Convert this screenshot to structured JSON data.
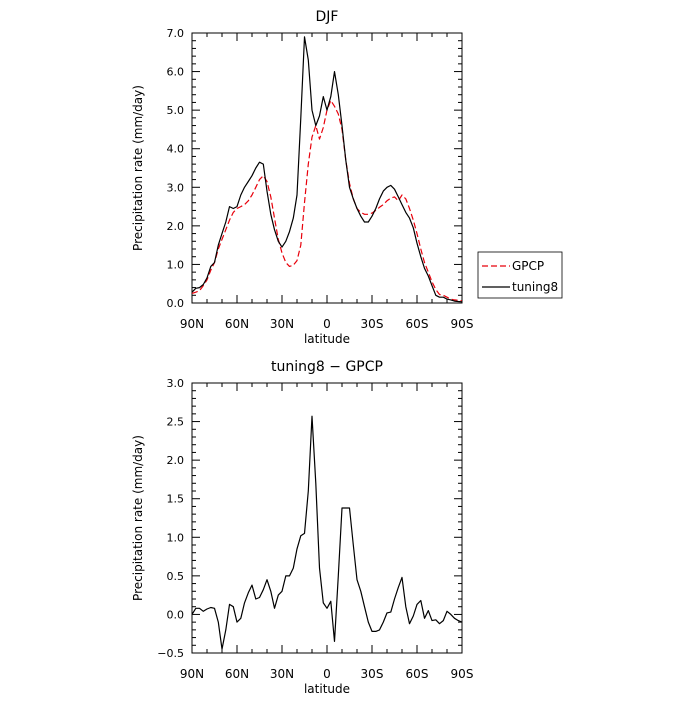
{
  "chart_data": [
    {
      "type": "line",
      "title": "DJF",
      "xlabel": "latitude",
      "ylabel": "Precipitation rate  (mm/day)",
      "xlim": [
        90,
        -90
      ],
      "ylim": [
        0,
        7
      ],
      "xticks": [
        90,
        60,
        30,
        0,
        -30,
        -60,
        -90
      ],
      "xtick_labels": [
        "90N",
        "60N",
        "30N",
        "0",
        "30S",
        "60S",
        "90S"
      ],
      "yticks": [
        0,
        1,
        2,
        3,
        4,
        5,
        6,
        7
      ],
      "ytick_labels": [
        "0.0",
        "1.0",
        "2.0",
        "3.0",
        "4.0",
        "5.0",
        "6.0",
        "7.0"
      ],
      "legend_position": "right",
      "series": [
        {
          "name": "GPCP",
          "color": "#e8000b",
          "dash": "dashed",
          "x": [
            90,
            87.5,
            85,
            82.5,
            80,
            77.5,
            75,
            72.5,
            70,
            67.5,
            65,
            62.5,
            60,
            57.5,
            55,
            52.5,
            50,
            47.5,
            45,
            42.5,
            40,
            37.5,
            35,
            32.5,
            30,
            27.5,
            25,
            22.5,
            20,
            17.5,
            15,
            12.5,
            10,
            7.5,
            5,
            2.5,
            0,
            -2.5,
            -5,
            -7.5,
            -10,
            -12.5,
            -15,
            -17.5,
            -20,
            -22.5,
            -25,
            -27.5,
            -30,
            -32.5,
            -35,
            -37.5,
            -40,
            -42.5,
            -45,
            -47.5,
            -50,
            -52.5,
            -55,
            -57.5,
            -60,
            -62.5,
            -65,
            -67.5,
            -70,
            -72.5,
            -75,
            -77.5,
            -80,
            -82.5,
            -85,
            -87.5,
            -90
          ],
          "y": [
            0.25,
            0.28,
            0.32,
            0.45,
            0.6,
            0.85,
            1.05,
            1.4,
            1.65,
            1.9,
            2.15,
            2.35,
            2.45,
            2.5,
            2.55,
            2.65,
            2.8,
            3.0,
            3.2,
            3.3,
            3.15,
            2.75,
            2.2,
            1.65,
            1.3,
            1.05,
            0.95,
            0.98,
            1.1,
            1.5,
            2.6,
            3.6,
            4.3,
            4.6,
            4.25,
            4.55,
            5.0,
            5.25,
            5.1,
            4.9,
            4.5,
            3.7,
            3.1,
            2.7,
            2.45,
            2.35,
            2.3,
            2.3,
            2.33,
            2.4,
            2.48,
            2.55,
            2.65,
            2.72,
            2.75,
            2.65,
            2.8,
            2.7,
            2.45,
            2.15,
            1.8,
            1.4,
            1.05,
            0.8,
            0.55,
            0.35,
            0.22,
            0.2,
            0.15,
            0.1,
            0.08,
            0.07,
            0.06
          ]
        },
        {
          "name": "tuning8",
          "color": "#000000",
          "dash": "solid",
          "x": [
            90,
            87.5,
            85,
            82.5,
            80,
            77.5,
            75,
            72.5,
            70,
            67.5,
            65,
            62.5,
            60,
            57.5,
            55,
            52.5,
            50,
            47.5,
            45,
            42.5,
            40,
            37.5,
            35,
            32.5,
            30,
            27.5,
            25,
            22.5,
            20,
            17.5,
            15,
            12.5,
            10,
            7.5,
            5,
            2.5,
            0,
            -2.5,
            -5,
            -7.5,
            -10,
            -12.5,
            -15,
            -17.5,
            -20,
            -22.5,
            -25,
            -27.5,
            -30,
            -32.5,
            -35,
            -37.5,
            -40,
            -42.5,
            -45,
            -47.5,
            -50,
            -52.5,
            -55,
            -57.5,
            -60,
            -62.5,
            -65,
            -67.5,
            -70,
            -72.5,
            -75,
            -77.5,
            -80,
            -82.5,
            -85,
            -87.5,
            -90
          ],
          "y": [
            0.28,
            0.38,
            0.4,
            0.48,
            0.65,
            0.95,
            1.05,
            1.5,
            1.8,
            2.1,
            2.5,
            2.45,
            2.5,
            2.8,
            3.0,
            3.15,
            3.3,
            3.5,
            3.65,
            3.6,
            2.9,
            2.3,
            1.9,
            1.6,
            1.45,
            1.6,
            1.85,
            2.2,
            2.8,
            4.8,
            6.9,
            6.3,
            5.0,
            4.6,
            4.85,
            5.35,
            5.0,
            5.35,
            6.0,
            5.4,
            4.6,
            3.7,
            3.0,
            2.7,
            2.45,
            2.25,
            2.1,
            2.1,
            2.25,
            2.45,
            2.7,
            2.9,
            3.0,
            3.05,
            2.95,
            2.75,
            2.55,
            2.35,
            2.2,
            1.95,
            1.55,
            1.2,
            0.9,
            0.7,
            0.45,
            0.2,
            0.15,
            0.15,
            0.1,
            0.08,
            0.05,
            0.04,
            0.03
          ]
        }
      ]
    },
    {
      "type": "line",
      "title": "tuning8 − GPCP",
      "xlabel": "latitude",
      "ylabel": "Precipitation rate  (mm/day)",
      "xlim": [
        90,
        -90
      ],
      "ylim": [
        -0.5,
        3.0
      ],
      "xticks": [
        90,
        60,
        30,
        0,
        -30,
        -60,
        -90
      ],
      "xtick_labels": [
        "90N",
        "60N",
        "30N",
        "0",
        "30S",
        "60S",
        "90S"
      ],
      "yticks": [
        -0.5,
        0,
        0.5,
        1,
        1.5,
        2,
        2.5,
        3
      ],
      "ytick_labels": [
        "−0.5",
        "0.0",
        "0.5",
        "1.0",
        "1.5",
        "2.0",
        "2.5",
        "3.0"
      ],
      "series": [
        {
          "color": "#000000",
          "dash": "solid",
          "x": [
            90,
            87.5,
            85,
            82.5,
            80,
            77.5,
            75,
            72.5,
            70,
            67.5,
            65,
            62.5,
            60,
            57.5,
            55,
            52.5,
            50,
            47.5,
            45,
            42.5,
            40,
            37.5,
            35,
            32.5,
            30,
            27.5,
            25,
            22.5,
            20,
            17.5,
            15,
            12.5,
            10,
            7.5,
            5,
            2.5,
            0,
            -2.5,
            -5,
            -7.5,
            -10,
            -12.5,
            -15,
            -17.5,
            -20,
            -22.5,
            -25,
            -27.5,
            -30,
            -32.5,
            -35,
            -37.5,
            -40,
            -42.5,
            -45,
            -47.5,
            -50,
            -52.5,
            -55,
            -57.5,
            -60,
            -62.5,
            -65,
            -67.5,
            -70,
            -72.5,
            -75,
            -77.5,
            -80,
            -82.5,
            -85,
            -87.5,
            -90
          ],
          "y": [
            0.0,
            0.08,
            0.08,
            0.04,
            0.07,
            0.09,
            0.08,
            -0.1,
            -0.45,
            -0.2,
            0.13,
            0.1,
            -0.1,
            -0.05,
            0.15,
            0.28,
            0.38,
            0.2,
            0.22,
            0.32,
            0.45,
            0.3,
            0.08,
            0.25,
            0.3,
            0.5,
            0.5,
            0.6,
            0.85,
            1.02,
            1.05,
            1.6,
            2.57,
            1.7,
            0.6,
            0.15,
            0.08,
            0.17,
            -0.35,
            0.5,
            1.38,
            1.38,
            1.38,
            0.9,
            0.45,
            0.3,
            0.1,
            -0.1,
            -0.22,
            -0.22,
            -0.2,
            -0.1,
            0.02,
            0.03,
            0.2,
            0.35,
            0.48,
            0.1,
            -0.12,
            -0.02,
            0.13,
            0.18,
            -0.05,
            0.05,
            -0.08,
            -0.07,
            -0.12,
            -0.08,
            0.04,
            0.0,
            -0.05,
            -0.08,
            -0.1
          ]
        }
      ]
    }
  ]
}
